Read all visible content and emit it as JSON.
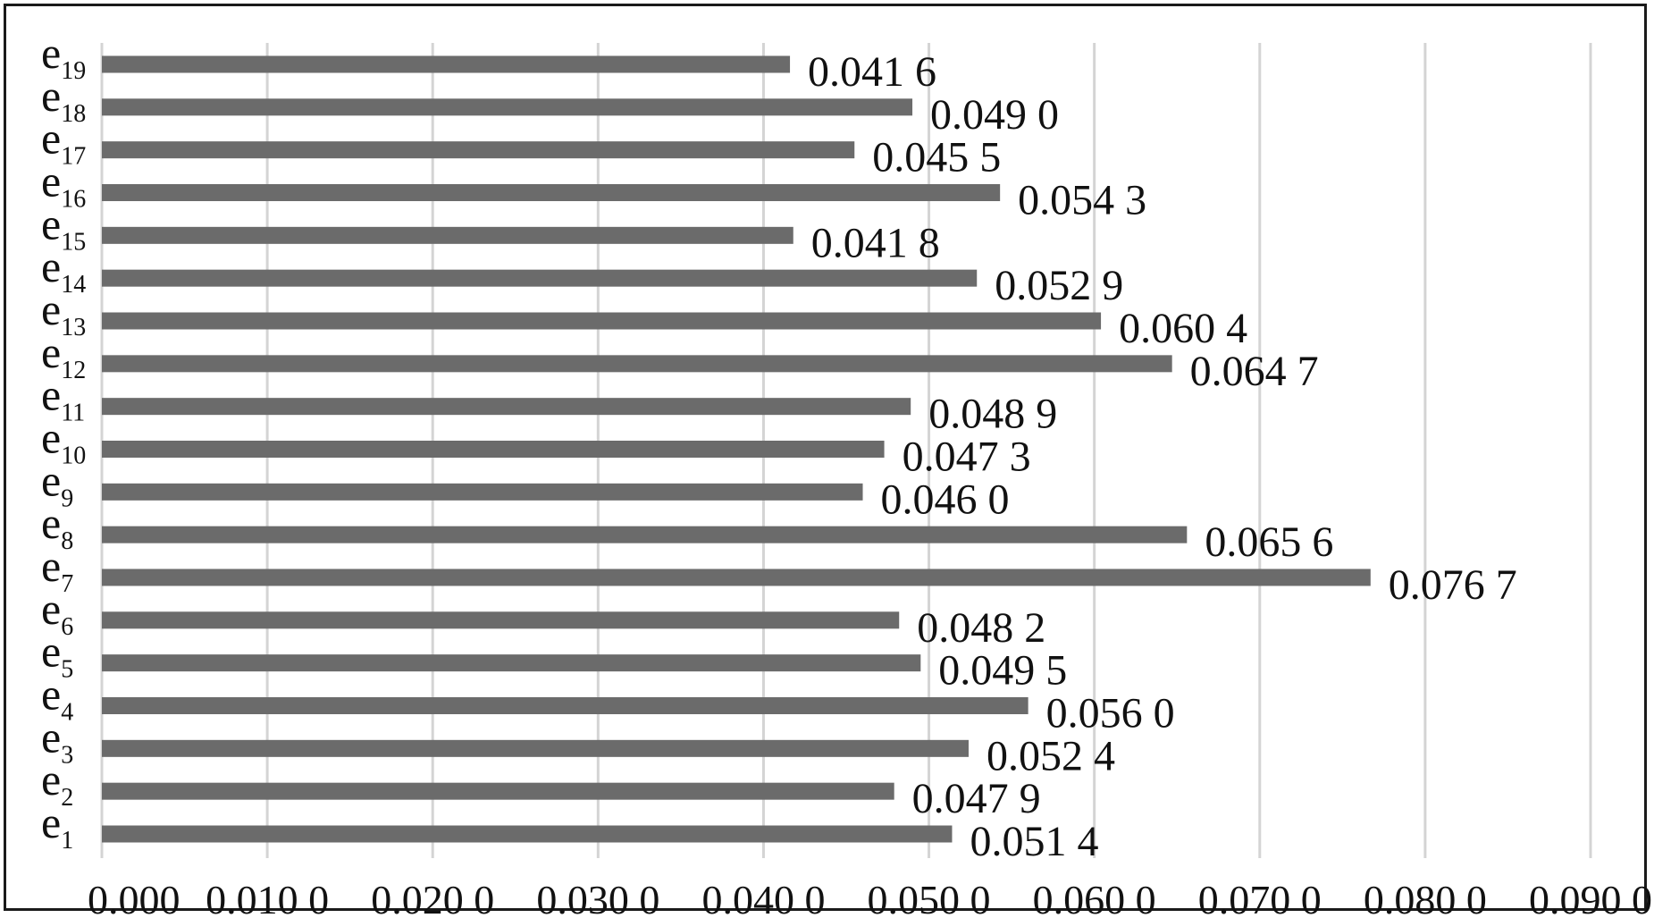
{
  "chart_data": {
    "type": "bar",
    "orientation": "horizontal",
    "categories": [
      {
        "base": "e",
        "sub": "1"
      },
      {
        "base": "e",
        "sub": "2"
      },
      {
        "base": "e",
        "sub": "3"
      },
      {
        "base": "e",
        "sub": "4"
      },
      {
        "base": "e",
        "sub": "5"
      },
      {
        "base": "e",
        "sub": "6"
      },
      {
        "base": "e",
        "sub": "7"
      },
      {
        "base": "e",
        "sub": "8"
      },
      {
        "base": "e",
        "sub": "9"
      },
      {
        "base": "e",
        "sub": "10"
      },
      {
        "base": "e",
        "sub": "11"
      },
      {
        "base": "e",
        "sub": "12"
      },
      {
        "base": "e",
        "sub": "13"
      },
      {
        "base": "e",
        "sub": "14"
      },
      {
        "base": "e",
        "sub": "15"
      },
      {
        "base": "e",
        "sub": "16"
      },
      {
        "base": "e",
        "sub": "17"
      },
      {
        "base": "e",
        "sub": "18"
      },
      {
        "base": "e",
        "sub": "19"
      }
    ],
    "values": [
      0.0514,
      0.0479,
      0.0524,
      0.056,
      0.0495,
      0.0482,
      0.0767,
      0.0656,
      0.046,
      0.0473,
      0.0489,
      0.0647,
      0.0604,
      0.0529,
      0.0418,
      0.0543,
      0.0455,
      0.049,
      0.0416
    ],
    "data_labels": [
      "0.051 4",
      "0.047 9",
      "0.052 4",
      "0.056 0",
      "0.049 5",
      "0.048 2",
      "0.076 7",
      "0.065 6",
      "0.046 0",
      "0.047 3",
      "0.048 9",
      "0.064 7",
      "0.060 4",
      "0.052 9",
      "0.041 8",
      "0.054 3",
      "0.045 5",
      "0.049 0",
      "0.041 6"
    ],
    "x_ticks": [
      0,
      0.01,
      0.02,
      0.03,
      0.04,
      0.05,
      0.06,
      0.07,
      0.08,
      0.09
    ],
    "x_tick_labels": [
      "0.000",
      "0.010 0",
      "0.020 0",
      "0.030 0",
      "0.040 0",
      "0.050 0",
      "0.060 0",
      "0.070 0",
      "0.080 0",
      "0.090 0"
    ],
    "xlim": [
      0,
      0.09
    ],
    "grid": "vertical",
    "legend": "none",
    "title": "",
    "xlabel": "",
    "ylabel": ""
  },
  "colors": {
    "bar": "#6b6b6b",
    "grid": "#d4d4d4",
    "text": "#111111",
    "frame": "#1a1a1a"
  }
}
